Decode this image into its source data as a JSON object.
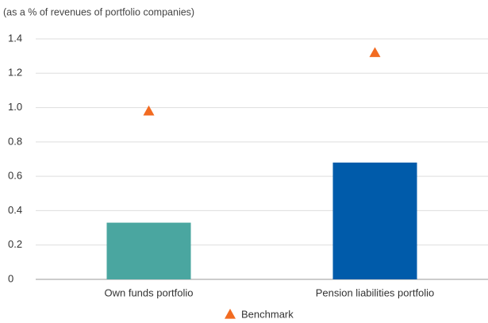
{
  "chart_data": {
    "type": "bar",
    "subtitle": "(as a % of revenues of portfolio companies)",
    "categories": [
      "Own funds portfolio",
      "Pension liabilities portfolio"
    ],
    "series": [
      {
        "values": [
          0.33,
          0.68
        ],
        "colors": [
          "#4aa6a0",
          "#005baa"
        ]
      },
      {
        "name": "Benchmark",
        "color": "#f26b21",
        "values": [
          0.98,
          1.32
        ],
        "marker": "triangle"
      }
    ],
    "ylim": [
      0,
      1.4
    ],
    "yticks": [
      0,
      0.2,
      0.4,
      0.6,
      0.8,
      {
        "value": 1,
        "label": "1.0"
      },
      1.2,
      1.4
    ],
    "grid": true,
    "legend": "bottom"
  }
}
